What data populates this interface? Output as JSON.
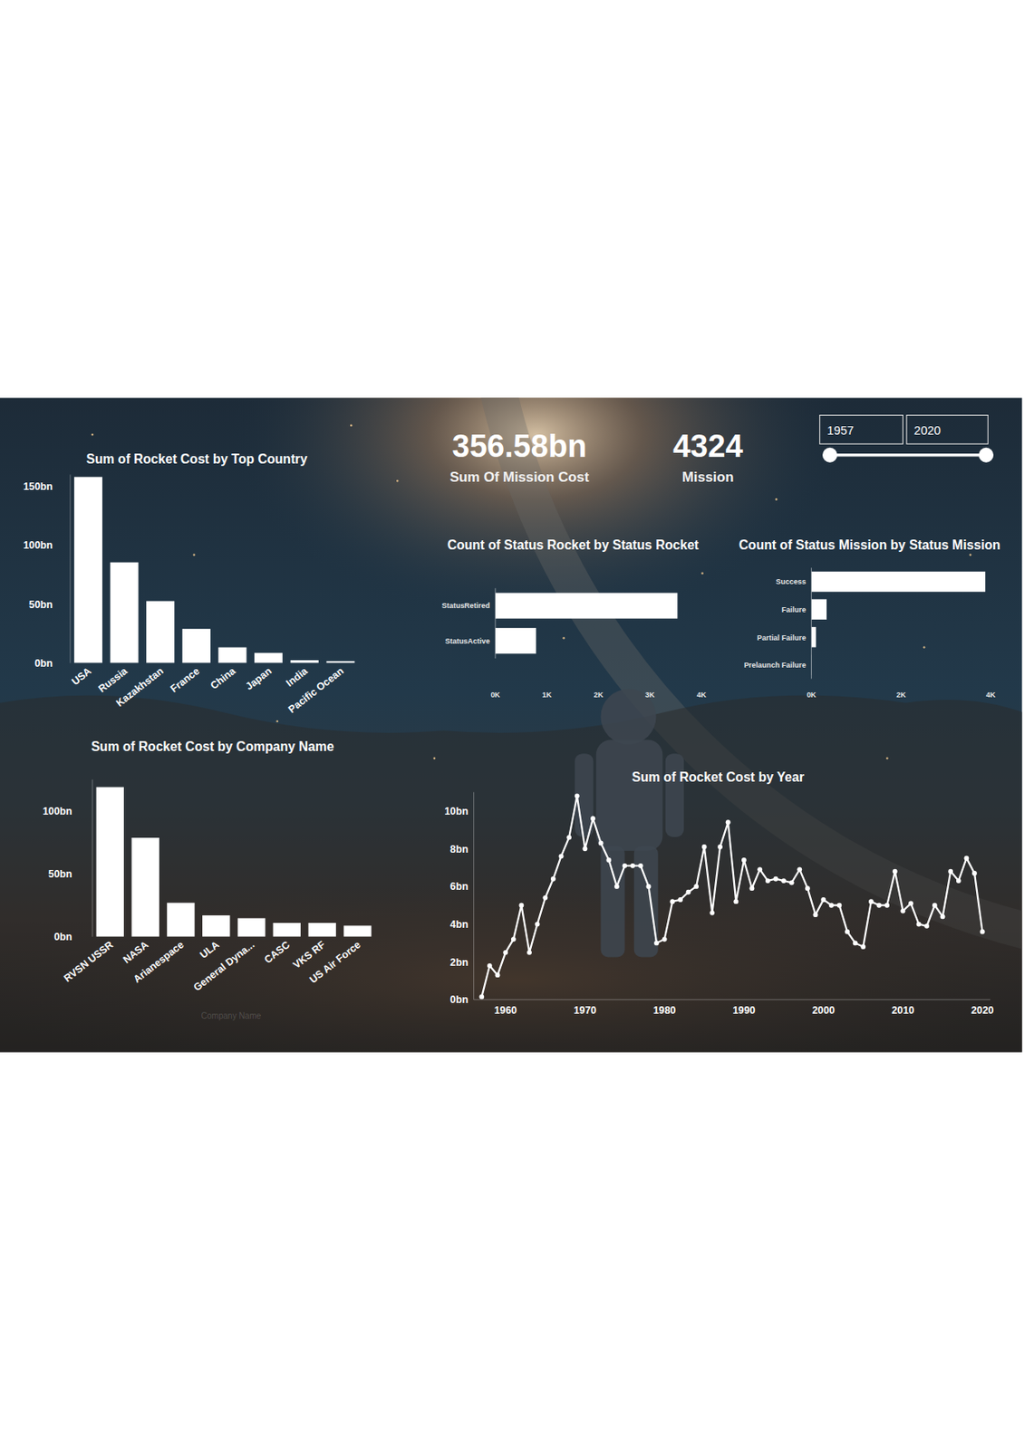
{
  "kpis": [
    {
      "value": 356.58,
      "label": "356.58bn",
      "caption": "Sum Of Mission Cost"
    },
    {
      "value": 4324,
      "caption": "Mission"
    }
  ],
  "slider": {
    "min": 1957,
    "max": 2020
  },
  "chart_data": [
    {
      "type": "bar",
      "title": "Sum of Rocket Cost by Top Country",
      "categories": [
        "USA",
        "Russia",
        "Kazakhstan",
        "France",
        "China",
        "Japan",
        "India",
        "Pacific Ocean"
      ],
      "values": [
        158,
        85.5,
        52.6,
        29,
        13.3,
        8.6,
        2.4,
        1.6
      ],
      "color": "#ffffff",
      "ylim": [
        0,
        160
      ],
      "yticks": [
        {
          "value": 0,
          "label": "0bn"
        },
        {
          "value": 50,
          "label": "50bn"
        },
        {
          "value": 100,
          "label": "100bn"
        },
        {
          "value": 150,
          "label": "150bn"
        }
      ],
      "grid": false
    },
    {
      "type": "bar",
      "title": "Sum of Rocket Cost by Company Name",
      "x_label": "Company Name",
      "categories": [
        "RVSN USSR",
        "NASA",
        "Arianespace",
        "ULA",
        "General Dyna...",
        "CASC",
        "VKS RF",
        "US Air Force"
      ],
      "values": [
        119,
        78.7,
        27,
        17,
        14.7,
        11,
        11,
        8.8
      ],
      "color": "#ffffff",
      "ylim": [
        0,
        125
      ],
      "yticks": [
        {
          "value": 0,
          "label": "0bn"
        },
        {
          "value": 50,
          "label": "50bn"
        },
        {
          "value": 100,
          "label": "100bn"
        }
      ],
      "grid": false
    },
    {
      "type": "bar",
      "orientation": "horizontal",
      "title": "Count of Status Rocket by Status Rocket",
      "categories": [
        "StatusRetired",
        "StatusActive"
      ],
      "values": [
        3534,
        790
      ],
      "color": "#ffffff",
      "xlim": [
        0,
        4000
      ],
      "xticks": [
        {
          "value": 0,
          "label": "0K"
        },
        {
          "value": 1000,
          "label": "1K"
        },
        {
          "value": 2000,
          "label": "2K"
        },
        {
          "value": 3000,
          "label": "3K"
        },
        {
          "value": 4000,
          "label": "4K"
        }
      ],
      "grid": false
    },
    {
      "type": "bar",
      "orientation": "horizontal",
      "title": "Count of Status Mission by Status Mission",
      "categories": [
        "Success",
        "Failure",
        "Partial Failure",
        "Prelaunch Failure"
      ],
      "values": [
        3879,
        339,
        102,
        4
      ],
      "color": "#ffffff",
      "xlim": [
        0,
        4000
      ],
      "xticks": [
        {
          "value": 0,
          "label": "0K"
        },
        {
          "value": 2000,
          "label": "2K"
        },
        {
          "value": 4000,
          "label": "4K"
        }
      ],
      "grid": false
    },
    {
      "type": "line",
      "title": "Sum of Rocket Cost by Year",
      "x": [
        1957,
        1958,
        1959,
        1960,
        1961,
        1962,
        1963,
        1964,
        1965,
        1966,
        1967,
        1968,
        1969,
        1970,
        1971,
        1972,
        1973,
        1974,
        1975,
        1976,
        1977,
        1978,
        1979,
        1980,
        1981,
        1982,
        1983,
        1984,
        1985,
        1986,
        1987,
        1988,
        1989,
        1990,
        1991,
        1992,
        1993,
        1994,
        1995,
        1996,
        1997,
        1998,
        1999,
        2000,
        2001,
        2002,
        2003,
        2004,
        2005,
        2006,
        2007,
        2008,
        2009,
        2010,
        2011,
        2012,
        2013,
        2014,
        2015,
        2016,
        2017,
        2018,
        2019,
        2020
      ],
      "values": [
        0.15,
        1.8,
        1.3,
        2.5,
        3.2,
        5.0,
        2.5,
        4.0,
        5.4,
        6.4,
        7.6,
        8.6,
        10.8,
        8.0,
        9.6,
        8.3,
        7.4,
        6.0,
        7.1,
        7.1,
        7.1,
        6.0,
        3.0,
        3.2,
        5.2,
        5.3,
        5.7,
        6.0,
        8.1,
        4.6,
        8.1,
        9.4,
        5.2,
        7.4,
        5.9,
        6.9,
        6.3,
        6.4,
        6.3,
        6.2,
        6.9,
        5.9,
        4.5,
        5.3,
        5.0,
        5.0,
        3.6,
        3.0,
        2.8,
        5.2,
        5.0,
        5.0,
        6.8,
        4.7,
        5.1,
        4.0,
        3.9,
        5.0,
        4.4,
        6.8,
        6.3,
        7.5,
        6.7,
        3.6
      ],
      "color": "#ffffff",
      "marker": "circle",
      "xlim": [
        1956,
        2021
      ],
      "xticks": [
        1960,
        1970,
        1980,
        1990,
        2000,
        2010,
        2020
      ],
      "ylim": [
        0,
        11
      ],
      "yticks": [
        {
          "value": 0,
          "label": "0bn"
        },
        {
          "value": 2,
          "label": "2bn"
        },
        {
          "value": 4,
          "label": "4bn"
        },
        {
          "value": 6,
          "label": "6bn"
        },
        {
          "value": 8,
          "label": "8bn"
        },
        {
          "value": 10,
          "label": "10bn"
        }
      ],
      "grid": false
    }
  ]
}
